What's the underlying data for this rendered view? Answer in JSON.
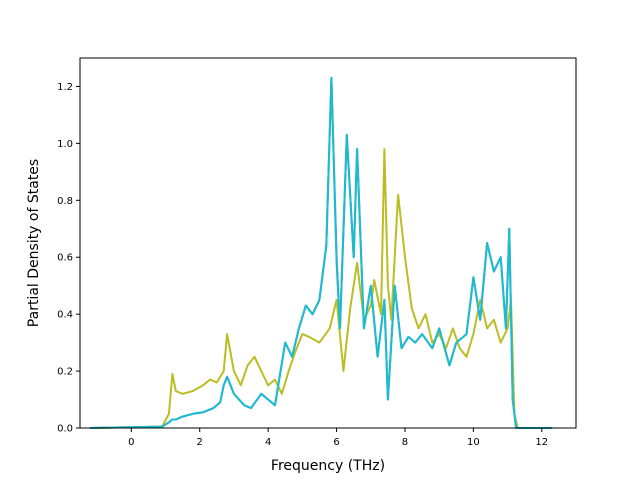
{
  "chart_data": {
    "type": "line",
    "title": "",
    "xlabel": "Frequency (THz)",
    "ylabel": "Partial Density of States",
    "xlim": [
      -1.5,
      13.0
    ],
    "ylim": [
      0.0,
      1.3
    ],
    "xticks": [
      0,
      2,
      4,
      6,
      8,
      10,
      12
    ],
    "xtick_labels": [
      "0",
      "2",
      "4",
      "6",
      "8",
      "10",
      "12"
    ],
    "yticks": [
      0.0,
      0.2,
      0.4,
      0.6,
      0.8,
      1.0,
      1.2
    ],
    "ytick_labels": [
      "0.0",
      "0.2",
      "0.4",
      "0.6",
      "0.8",
      "1.0",
      "1.2"
    ],
    "grid": false,
    "legend": "none",
    "series": [
      {
        "color": "#9467bd",
        "x": [
          -1.2,
          0.9,
          1.1,
          1.2,
          1.3,
          1.5,
          1.8,
          2.1,
          2.4,
          2.6,
          2.7,
          2.8,
          3.0,
          3.3,
          3.5,
          3.8,
          4.0,
          4.2,
          4.5,
          4.7,
          4.9,
          5.1,
          5.3,
          5.5,
          5.7,
          5.85,
          6.0,
          6.1,
          6.3,
          6.5,
          6.6,
          6.8,
          7.0,
          7.2,
          7.4,
          7.5,
          7.7,
          7.9,
          8.1,
          8.3,
          8.5,
          8.8,
          9.0,
          9.3,
          9.5,
          9.8,
          10.0,
          10.2,
          10.4,
          10.6,
          10.8,
          10.95,
          11.05,
          11.15,
          11.25,
          11.5,
          12.3
        ],
        "y": [
          0.0,
          0.005,
          0.02,
          0.03,
          0.03,
          0.04,
          0.05,
          0.055,
          0.07,
          0.09,
          0.15,
          0.18,
          0.12,
          0.08,
          0.07,
          0.12,
          0.1,
          0.08,
          0.3,
          0.25,
          0.35,
          0.43,
          0.4,
          0.45,
          0.64,
          1.23,
          0.6,
          0.35,
          1.03,
          0.6,
          0.98,
          0.35,
          0.5,
          0.25,
          0.45,
          0.1,
          0.5,
          0.28,
          0.32,
          0.3,
          0.33,
          0.28,
          0.35,
          0.22,
          0.3,
          0.33,
          0.53,
          0.38,
          0.65,
          0.55,
          0.6,
          0.35,
          0.7,
          0.1,
          0.0,
          0.0,
          0.0
        ]
      },
      {
        "color": "#bcbd22",
        "x": [
          -1.2,
          0.9,
          1.1,
          1.2,
          1.3,
          1.5,
          1.8,
          2.1,
          2.3,
          2.5,
          2.7,
          2.8,
          3.0,
          3.2,
          3.4,
          3.6,
          3.8,
          4.0,
          4.2,
          4.4,
          4.6,
          4.8,
          5.0,
          5.2,
          5.5,
          5.8,
          6.0,
          6.2,
          6.4,
          6.6,
          6.8,
          7.0,
          7.1,
          7.3,
          7.4,
          7.5,
          7.6,
          7.8,
          8.0,
          8.2,
          8.4,
          8.6,
          8.8,
          9.0,
          9.2,
          9.4,
          9.6,
          9.8,
          10.0,
          10.2,
          10.4,
          10.6,
          10.8,
          11.0,
          11.1,
          11.2,
          11.3,
          11.5,
          12.3
        ],
        "y": [
          0.0,
          0.005,
          0.05,
          0.19,
          0.13,
          0.12,
          0.13,
          0.15,
          0.17,
          0.16,
          0.2,
          0.33,
          0.2,
          0.15,
          0.22,
          0.25,
          0.2,
          0.15,
          0.17,
          0.12,
          0.2,
          0.27,
          0.33,
          0.32,
          0.3,
          0.35,
          0.45,
          0.2,
          0.42,
          0.58,
          0.38,
          0.43,
          0.52,
          0.4,
          0.98,
          0.5,
          0.38,
          0.82,
          0.6,
          0.42,
          0.35,
          0.4,
          0.3,
          0.33,
          0.28,
          0.35,
          0.28,
          0.25,
          0.33,
          0.45,
          0.35,
          0.38,
          0.3,
          0.35,
          0.45,
          0.05,
          0.0,
          0.0,
          0.0
        ]
      },
      {
        "color": "#17becf",
        "x": [
          -1.2,
          0.9,
          1.1,
          1.2,
          1.3,
          1.5,
          1.8,
          2.1,
          2.4,
          2.6,
          2.7,
          2.8,
          3.0,
          3.3,
          3.5,
          3.8,
          4.0,
          4.2,
          4.5,
          4.7,
          4.9,
          5.1,
          5.3,
          5.5,
          5.7,
          5.85,
          6.0,
          6.1,
          6.3,
          6.5,
          6.6,
          6.8,
          7.0,
          7.2,
          7.4,
          7.5,
          7.7,
          7.9,
          8.1,
          8.3,
          8.5,
          8.8,
          9.0,
          9.3,
          9.5,
          9.8,
          10.0,
          10.2,
          10.4,
          10.6,
          10.8,
          10.95,
          11.05,
          11.15,
          11.25,
          11.5,
          12.3
        ],
        "y": [
          0.0,
          0.005,
          0.02,
          0.03,
          0.03,
          0.04,
          0.05,
          0.055,
          0.07,
          0.09,
          0.15,
          0.18,
          0.12,
          0.08,
          0.07,
          0.12,
          0.1,
          0.08,
          0.3,
          0.25,
          0.35,
          0.43,
          0.4,
          0.45,
          0.64,
          1.23,
          0.58,
          0.35,
          1.03,
          0.6,
          0.98,
          0.35,
          0.5,
          0.25,
          0.45,
          0.1,
          0.5,
          0.28,
          0.32,
          0.3,
          0.33,
          0.28,
          0.35,
          0.22,
          0.3,
          0.33,
          0.53,
          0.38,
          0.65,
          0.55,
          0.6,
          0.35,
          0.7,
          0.1,
          0.0,
          0.0,
          0.0
        ]
      }
    ]
  }
}
